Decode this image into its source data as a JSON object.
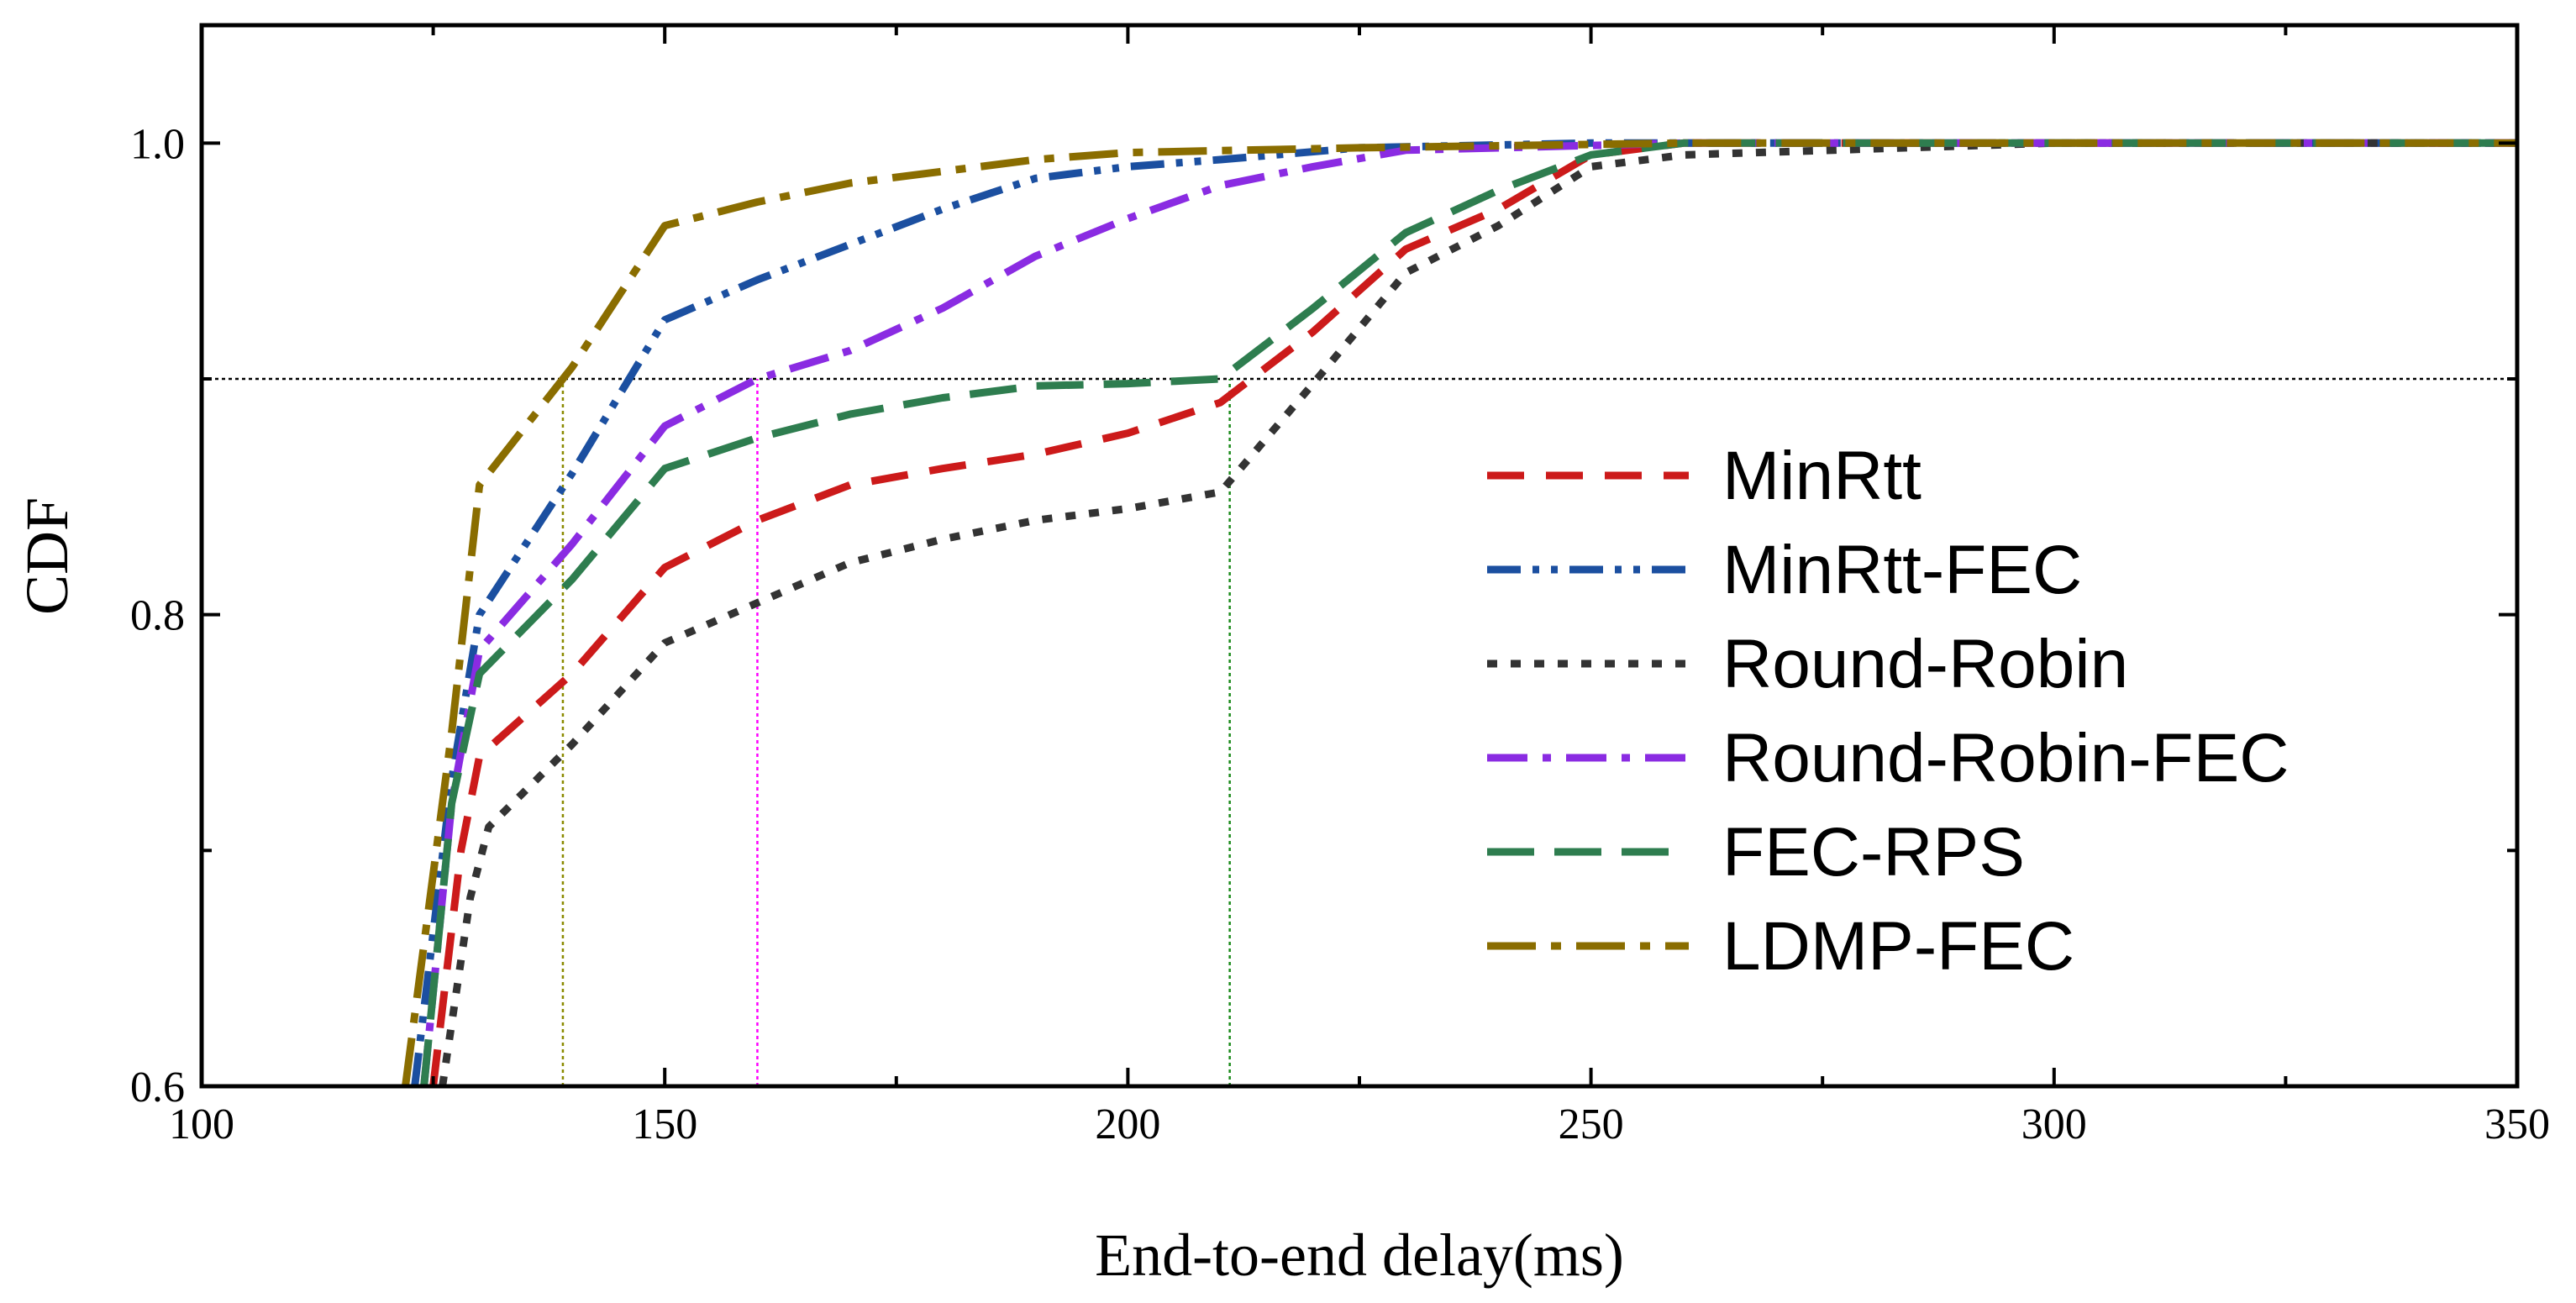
{
  "chart_data": {
    "type": "line",
    "title": "",
    "xlabel": "End-to-end delay(ms)",
    "ylabel": "CDF",
    "xlim": [
      100,
      350
    ],
    "ylim": [
      0.6,
      1.05
    ],
    "xticks": [
      100,
      150,
      200,
      250,
      300,
      350
    ],
    "xtick_labels": [
      "100",
      "150",
      "200",
      "250",
      "300",
      "350"
    ],
    "yticks": [
      0.6,
      0.8,
      1.0
    ],
    "ytick_labels": [
      "0.6",
      "0.8",
      "1.0"
    ],
    "legend_position": "right",
    "reference_lines": [
      {
        "name": "ref-y-0.9",
        "orientation": "horizontal",
        "value": 0.9,
        "color": "#000000"
      },
      {
        "name": "ref-x-139",
        "orientation": "vertical",
        "value": 139,
        "from": 0.6,
        "to": 0.9,
        "color": "#8a8a00"
      },
      {
        "name": "ref-x-160",
        "orientation": "vertical",
        "value": 160,
        "from": 0.6,
        "to": 0.9,
        "color": "#ff00ff"
      },
      {
        "name": "ref-x-211",
        "orientation": "vertical",
        "value": 211,
        "from": 0.6,
        "to": 0.9,
        "color": "#1a8a1a"
      }
    ],
    "series": [
      {
        "name": "MinRtt",
        "color": "#cc1a1a",
        "dash": "dash",
        "x": [
          125,
          128,
          130,
          140,
          150,
          160,
          170,
          180,
          190,
          200,
          210,
          220,
          230,
          240,
          250,
          260,
          300,
          350
        ],
        "y": [
          0.6,
          0.7,
          0.74,
          0.775,
          0.82,
          0.84,
          0.855,
          0.862,
          0.868,
          0.877,
          0.89,
          0.92,
          0.955,
          0.972,
          0.995,
          1.0,
          1.0,
          1.0
        ]
      },
      {
        "name": "MinRtt-FEC",
        "color": "#1b4fa0",
        "dash": "dashdotdot",
        "x": [
          123,
          127,
          130,
          140,
          150,
          160,
          170,
          180,
          190,
          200,
          210,
          225,
          250,
          300,
          350
        ],
        "y": [
          0.6,
          0.73,
          0.8,
          0.86,
          0.925,
          0.942,
          0.957,
          0.972,
          0.985,
          0.99,
          0.993,
          0.998,
          1.0,
          1.0,
          1.0
        ]
      },
      {
        "name": "Round-Robin",
        "color": "#333333",
        "dash": "dot",
        "x": [
          126,
          129,
          131,
          140,
          150,
          160,
          170,
          180,
          190,
          200,
          210,
          220,
          230,
          240,
          250,
          260,
          300,
          350
        ],
        "y": [
          0.6,
          0.68,
          0.71,
          0.745,
          0.788,
          0.805,
          0.822,
          0.832,
          0.84,
          0.845,
          0.852,
          0.898,
          0.945,
          0.965,
          0.99,
          0.995,
          1.0,
          1.0
        ]
      },
      {
        "name": "Round-Robin-FEC",
        "color": "#8a2be2",
        "dash": "dashdot",
        "x": [
          124,
          127,
          130,
          140,
          150,
          160,
          170,
          180,
          190,
          200,
          210,
          220,
          230,
          260,
          300,
          350
        ],
        "y": [
          0.6,
          0.72,
          0.785,
          0.83,
          0.88,
          0.9,
          0.912,
          0.93,
          0.952,
          0.968,
          0.982,
          0.99,
          0.997,
          1.0,
          1.0,
          1.0
        ]
      },
      {
        "name": "FEC-RPS",
        "color": "#2e7d4f",
        "dash": "longdash",
        "x": [
          124,
          127,
          130,
          140,
          150,
          160,
          170,
          180,
          190,
          200,
          210,
          220,
          230,
          240,
          250,
          260,
          300,
          350
        ],
        "y": [
          0.6,
          0.72,
          0.775,
          0.815,
          0.862,
          0.875,
          0.885,
          0.892,
          0.897,
          0.898,
          0.9,
          0.93,
          0.962,
          0.98,
          0.995,
          1.0,
          1.0,
          1.0
        ]
      },
      {
        "name": "LDMP-FEC",
        "color": "#8a6d00",
        "dash": "longdashdot",
        "x": [
          122,
          125,
          127,
          130,
          135,
          140,
          150,
          160,
          170,
          180,
          190,
          200,
          225,
          260,
          300,
          350
        ],
        "y": [
          0.6,
          0.69,
          0.75,
          0.855,
          0.88,
          0.905,
          0.965,
          0.975,
          0.983,
          0.988,
          0.993,
          0.996,
          0.998,
          1.0,
          1.0,
          1.0
        ]
      }
    ]
  }
}
